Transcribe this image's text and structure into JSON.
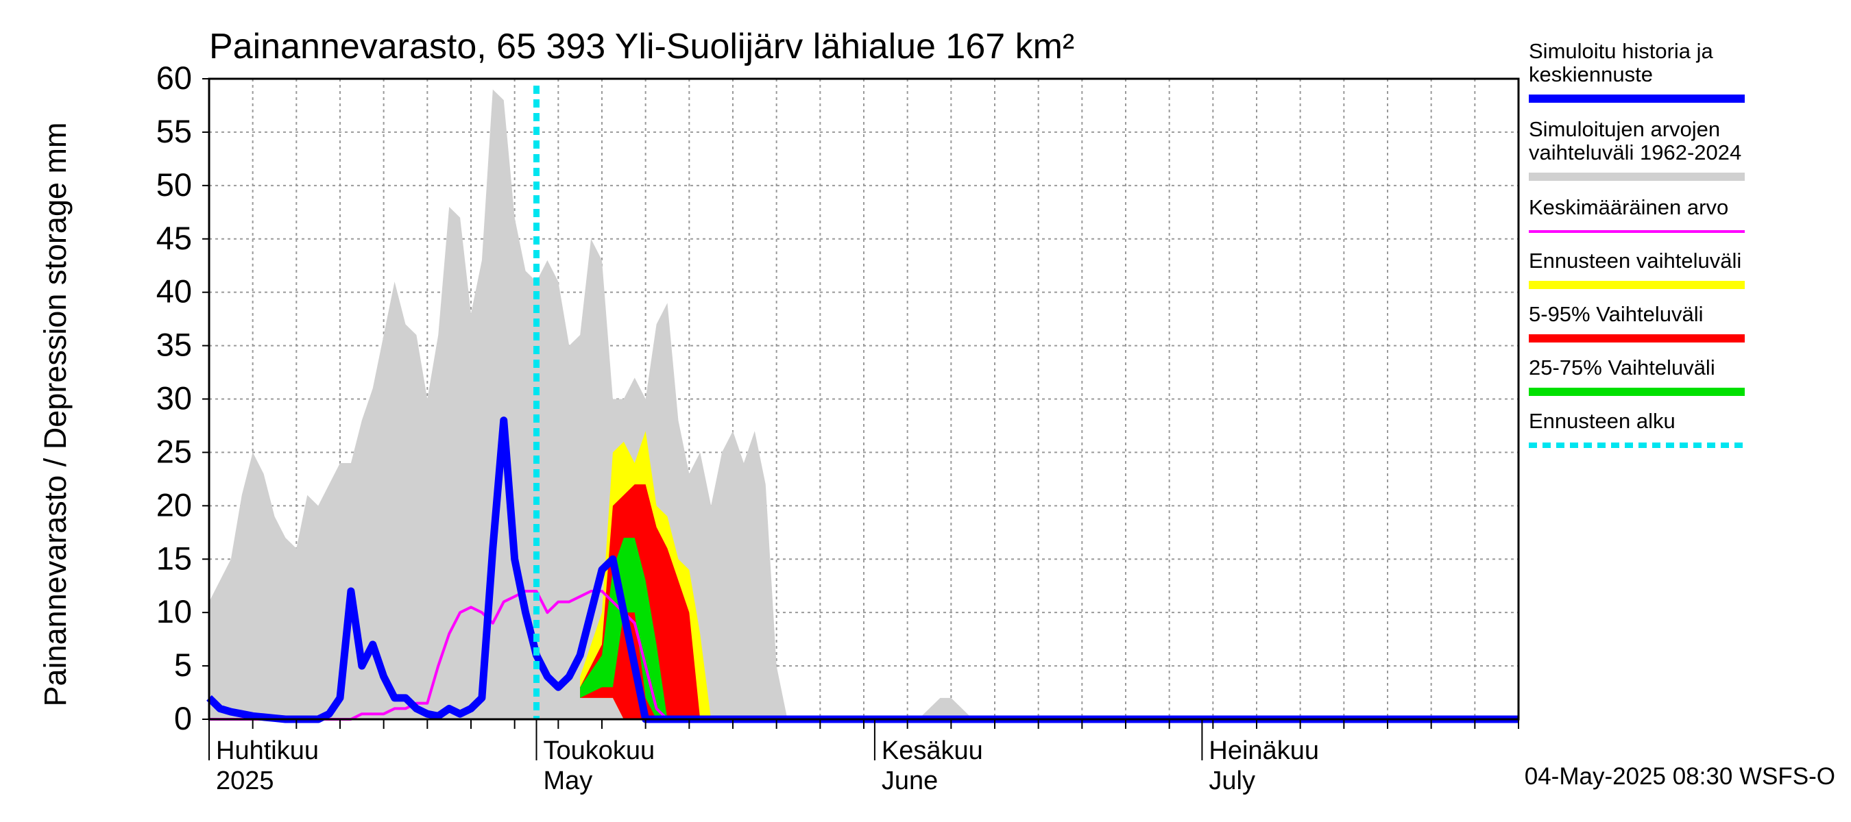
{
  "chart_data": {
    "type": "area",
    "title": "Painannevarasto, 65 393 Yli-Suolijärv lähialue 167 km²",
    "ylabel": "Painannevarasto / Depression storage    mm",
    "ylim": [
      0,
      60
    ],
    "yticks": [
      0,
      5,
      10,
      15,
      20,
      25,
      30,
      35,
      40,
      45,
      50,
      55,
      60
    ],
    "x_unit": "day since 2025-03-28",
    "xlim": [
      0,
      120
    ],
    "grid": true,
    "months": [
      {
        "label_fi": "Huhtikuu",
        "label_en": "2025",
        "day": 4
      },
      {
        "label_fi": "Toukokuu",
        "label_en": "May",
        "day": 34
      },
      {
        "label_fi": "Kesäkuu",
        "label_en": "June",
        "day": 65
      },
      {
        "label_fi": "Heinäkuu",
        "label_en": "July",
        "day": 95
      }
    ],
    "forecast_start_day": 30,
    "timestamp": "04-May-2025 08:30 WSFS-O",
    "legend": [
      {
        "label": "Simuloitu historia ja keskiennuste",
        "color": "#0000ff",
        "style": "thick"
      },
      {
        "label": "Simuloitujen arvojen vaihteluväli 1962-2024",
        "color": "#d0d0d0",
        "style": "band"
      },
      {
        "label": "Keskimääräinen arvo",
        "color": "#ff00ff",
        "style": "thin"
      },
      {
        "label": "Ennusteen vaihteluväli",
        "color": "#ffff00",
        "style": "band"
      },
      {
        "label": "5-95% Vaihteluväli",
        "color": "#ff0000",
        "style": "band"
      },
      {
        "label": "25-75% Vaihteluväli",
        "color": "#00e000",
        "style": "band"
      },
      {
        "label": "Ennusteen alku",
        "color": "#00e5f0",
        "style": "dotted"
      }
    ],
    "series": [
      {
        "name": "Simuloitujen arvojen vaihteluväli 1962-2024",
        "kind": "band",
        "color": "#d0d0d0",
        "x": [
          0,
          2,
          3,
          4,
          5,
          6,
          7,
          8,
          9,
          10,
          11,
          12,
          13,
          14,
          15,
          16,
          17,
          18,
          19,
          20,
          21,
          22,
          23,
          24,
          25,
          26,
          27,
          28,
          29,
          30,
          31,
          32,
          33,
          34,
          35,
          36,
          37,
          38,
          39,
          40,
          41,
          42,
          43,
          44,
          45,
          46,
          47,
          48,
          49,
          50,
          51,
          52,
          53,
          54,
          55,
          56,
          57,
          58,
          59,
          60,
          61,
          62,
          63,
          64,
          65,
          66,
          67,
          68,
          69,
          70,
          71,
          72,
          73,
          74,
          75,
          120
        ],
        "upper": [
          11,
          15,
          21,
          25,
          23,
          19,
          17,
          16,
          21,
          20,
          22,
          24,
          24,
          28,
          31,
          36,
          41,
          37,
          36,
          30,
          36,
          48,
          47,
          38,
          43,
          59,
          58,
          47,
          42,
          41,
          43,
          41,
          35,
          36,
          45,
          43,
          30,
          30,
          32,
          30,
          37,
          39,
          28,
          23,
          25,
          20,
          25,
          27,
          24,
          27,
          22,
          5,
          0,
          0,
          0,
          0,
          0,
          0,
          0,
          0,
          0,
          0,
          0,
          0,
          0,
          1,
          2,
          2,
          1,
          0,
          0,
          0,
          0,
          0,
          0,
          0
        ],
        "lower": [
          0,
          0,
          0,
          0,
          0,
          0,
          0,
          0,
          0,
          0,
          0,
          0,
          0,
          0,
          0,
          0,
          0,
          0,
          0,
          0,
          0,
          0,
          0,
          0,
          0,
          0,
          0,
          0,
          0,
          0,
          0,
          0,
          0,
          0,
          0,
          0,
          0,
          0,
          0,
          0,
          0,
          0,
          0,
          0,
          0,
          0,
          0,
          0,
          0,
          0,
          0,
          0,
          0,
          0,
          0,
          0,
          0,
          0,
          0,
          0,
          0,
          0,
          0,
          0,
          0,
          0,
          0,
          0,
          0,
          0,
          0,
          0,
          0,
          0,
          0,
          0
        ]
      },
      {
        "name": "Ennusteen vaihteluväli",
        "kind": "band",
        "color": "#ffff00",
        "x": [
          34,
          36,
          37,
          38,
          39,
          40,
          41,
          42,
          43,
          44,
          45,
          46
        ],
        "upper": [
          4,
          10,
          25,
          26,
          24,
          27,
          20,
          19,
          15,
          14,
          8,
          0
        ],
        "lower": [
          3,
          2,
          2,
          0,
          0,
          0,
          0,
          0,
          0,
          0,
          0,
          0
        ]
      },
      {
        "name": "5-95% Vaihteluväli",
        "kind": "band",
        "color": "#ff0000",
        "x": [
          34,
          36,
          37,
          38,
          39,
          40,
          41,
          42,
          43,
          44,
          45
        ],
        "upper": [
          3,
          7,
          20,
          21,
          22,
          22,
          18,
          16,
          13,
          10,
          0
        ],
        "lower": [
          2,
          2,
          2,
          0,
          0,
          0,
          0,
          0,
          0,
          0,
          0
        ]
      },
      {
        "name": "25-75% Vaihteluväli",
        "kind": "band",
        "color": "#00e000",
        "x": [
          34,
          36,
          37,
          38,
          39,
          40,
          41,
          42,
          43
        ],
        "upper": [
          3,
          6,
          14,
          17,
          17,
          13,
          7,
          0,
          0
        ],
        "lower": [
          2,
          3,
          3,
          10,
          10,
          2,
          0,
          0,
          0
        ]
      },
      {
        "name": "Keskimääräinen arvo",
        "kind": "line",
        "color": "#ff00ff",
        "x": [
          0,
          12,
          13,
          14,
          15,
          16,
          17,
          18,
          19,
          20,
          21,
          22,
          23,
          24,
          25,
          26,
          27,
          28,
          29,
          30,
          31,
          32,
          33,
          34,
          35,
          36,
          37,
          38,
          39,
          40,
          41,
          42,
          43,
          44,
          45,
          120
        ],
        "y": [
          0,
          0,
          0,
          0.5,
          0.5,
          0.5,
          1,
          1,
          1.5,
          1.5,
          5,
          8,
          10,
          10.5,
          10,
          9,
          11,
          11.5,
          12,
          12,
          10,
          11,
          11,
          11.5,
          12,
          12,
          11,
          10,
          9,
          5,
          1,
          0,
          0,
          0,
          0,
          0
        ]
      },
      {
        "name": "Simuloitu historia ja keskiennuste",
        "kind": "line",
        "color": "#0000ff",
        "x": [
          0,
          1,
          2,
          3,
          4,
          5,
          6,
          7,
          8,
          9,
          10,
          11,
          12,
          13,
          14,
          15,
          16,
          17,
          18,
          19,
          20,
          21,
          22,
          23,
          24,
          25,
          26,
          27,
          28,
          29,
          30,
          31,
          32,
          33,
          34,
          35,
          36,
          37,
          38,
          39,
          40,
          41,
          42,
          43,
          120
        ],
        "y": [
          2,
          1,
          0.7,
          0.5,
          0.3,
          0.2,
          0.1,
          0,
          0,
          0,
          0,
          0.5,
          2,
          12,
          5,
          7,
          4,
          2,
          2,
          1,
          0.5,
          0.3,
          1,
          0.5,
          1,
          2,
          16,
          28,
          15,
          10,
          6,
          4,
          3,
          4,
          6,
          10,
          14,
          15,
          10,
          5,
          0,
          0,
          0,
          0,
          0
        ]
      }
    ]
  }
}
